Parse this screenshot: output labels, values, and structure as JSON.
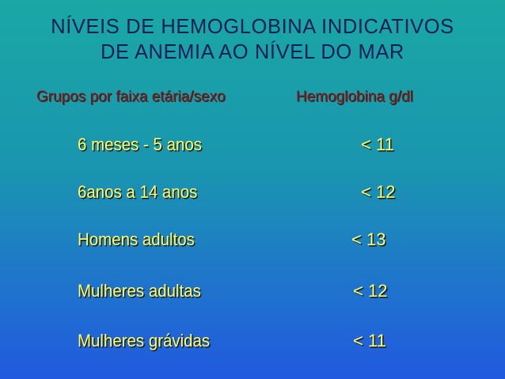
{
  "title": {
    "line1": "NÍVEIS DE HEMOGLOBINA INDICATIVOS",
    "line2": "DE ANEMIA  AO NÍVEL DO MAR"
  },
  "table": {
    "header_group": "Grupos por faixa etária/sexo",
    "header_value": "Hemoglobina g/dl",
    "rows": [
      {
        "group": "6 meses - 5 anos",
        "value": "< 11"
      },
      {
        "group": "6anos a 14  anos",
        "value": "< 12"
      },
      {
        "group": "Homens adultos",
        "value": "< 13"
      },
      {
        "group": "Mulheres adultas",
        "value": "< 12"
      },
      {
        "group": "Mulheres grávidas",
        "value": "< 11"
      }
    ]
  },
  "colors": {
    "title": "#0a1f55",
    "header": "#7a1a1a",
    "rows": "#ffff66"
  }
}
